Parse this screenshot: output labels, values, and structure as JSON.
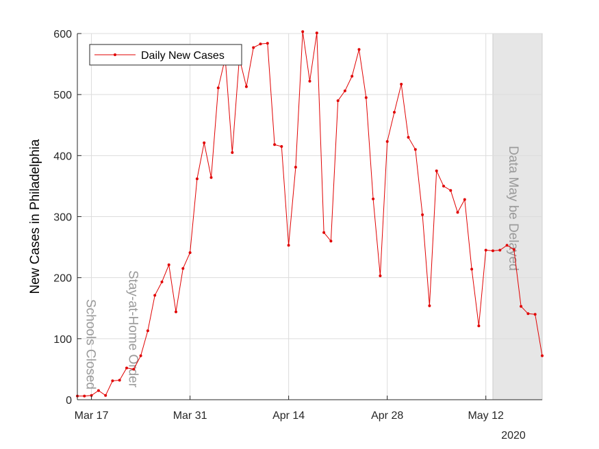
{
  "chart_data": {
    "type": "line",
    "title": "",
    "xlabel": "",
    "ylabel": "New Cases in Philadelphia",
    "year_label": "2020",
    "x_start": "2020-03-15",
    "x_end": "2020-05-20",
    "xticks": [
      {
        "date": "2020-03-17",
        "label": "Mar 17"
      },
      {
        "date": "2020-03-31",
        "label": "Mar 31"
      },
      {
        "date": "2020-04-14",
        "label": "Apr 14"
      },
      {
        "date": "2020-04-28",
        "label": "Apr 28"
      },
      {
        "date": "2020-05-12",
        "label": "May 12"
      }
    ],
    "ylim": [
      0,
      600
    ],
    "yticks": [
      0,
      100,
      200,
      300,
      400,
      500,
      600
    ],
    "grid": true,
    "legend": "top-left",
    "series": [
      {
        "name": "Daily New Cases",
        "color": "#e00000",
        "values": [
          6,
          6,
          7,
          15,
          7,
          31,
          32,
          52,
          50,
          72,
          113,
          171,
          193,
          221,
          144,
          215,
          241,
          362,
          421,
          364,
          511,
          560,
          405,
          560,
          513,
          577,
          583,
          584,
          418,
          415,
          253,
          381,
          603,
          522,
          601,
          274,
          260,
          490,
          506,
          530,
          574,
          495,
          329,
          203,
          423,
          471,
          517,
          430,
          410,
          303,
          154,
          375,
          350,
          343,
          307,
          328,
          214,
          121,
          245,
          244,
          245,
          253,
          246,
          153,
          141,
          140,
          72
        ]
      }
    ],
    "annotations": [
      {
        "text": "Schools Closed",
        "date": "2020-03-17"
      },
      {
        "text": "Stay-at-Home Order",
        "date": "2020-03-23"
      },
      {
        "text": "Data May be Delayed",
        "date": "2020-05-16"
      }
    ],
    "shaded_region": {
      "from": "2020-05-13",
      "to": "2020-05-20",
      "color": "#e6e6e6"
    }
  }
}
